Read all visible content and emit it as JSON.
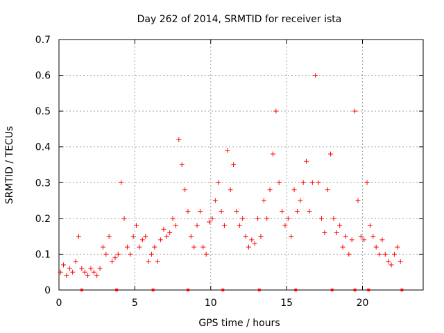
{
  "chart_data": {
    "type": "scatter",
    "title": "Day 262 of 2014, SRMTID for receiver ista",
    "xlabel": "GPS time / hours",
    "ylabel": "SRMTID / TECUs",
    "xlim": [
      0,
      24
    ],
    "ylim": [
      0,
      0.7
    ],
    "xticks": [
      {
        "value": 0,
        "label": "0"
      },
      {
        "value": 5,
        "label": "5"
      },
      {
        "value": 10,
        "label": "10"
      },
      {
        "value": 15,
        "label": "15"
      },
      {
        "value": 20,
        "label": "20"
      }
    ],
    "yticks": [
      {
        "value": 0,
        "label": "0"
      },
      {
        "value": 0.1,
        "label": "0.1"
      },
      {
        "value": 0.2,
        "label": "0.2"
      },
      {
        "value": 0.3,
        "label": "0.3"
      },
      {
        "value": 0.4,
        "label": "0.4"
      },
      {
        "value": 0.5,
        "label": "0.5"
      },
      {
        "value": 0.6,
        "label": "0.6"
      },
      {
        "value": 0.7,
        "label": "0.7"
      }
    ],
    "grid": true,
    "marker": "plus",
    "color": "#ff0000",
    "series": [
      {
        "name": "SRMTID",
        "points": [
          [
            0.1,
            0.05
          ],
          [
            0.3,
            0.07
          ],
          [
            0.5,
            0.04
          ],
          [
            0.7,
            0.06
          ],
          [
            0.9,
            0.05
          ],
          [
            1.1,
            0.08
          ],
          [
            1.3,
            0.15
          ],
          [
            1.5,
            0.06
          ],
          [
            1.7,
            0.05
          ],
          [
            1.9,
            0.04
          ],
          [
            2.1,
            0.06
          ],
          [
            2.3,
            0.05
          ],
          [
            2.5,
            0.04
          ],
          [
            2.7,
            0.06
          ],
          [
            2.9,
            0.12
          ],
          [
            3.1,
            0.1
          ],
          [
            3.3,
            0.15
          ],
          [
            3.5,
            0.08
          ],
          [
            3.7,
            0.09
          ],
          [
            3.9,
            0.1
          ],
          [
            4.1,
            0.3
          ],
          [
            4.3,
            0.2
          ],
          [
            4.5,
            0.12
          ],
          [
            4.7,
            0.1
          ],
          [
            4.9,
            0.15
          ],
          [
            5.1,
            0.18
          ],
          [
            5.3,
            0.12
          ],
          [
            5.5,
            0.14
          ],
          [
            5.7,
            0.15
          ],
          [
            5.9,
            0.08
          ],
          [
            6.1,
            0.1
          ],
          [
            6.3,
            0.12
          ],
          [
            6.5,
            0.08
          ],
          [
            6.7,
            0.14
          ],
          [
            6.9,
            0.17
          ],
          [
            7.1,
            0.15
          ],
          [
            7.3,
            0.16
          ],
          [
            7.5,
            0.2
          ],
          [
            7.7,
            0.18
          ],
          [
            7.9,
            0.42
          ],
          [
            8.1,
            0.35
          ],
          [
            8.3,
            0.28
          ],
          [
            8.5,
            0.22
          ],
          [
            8.7,
            0.15
          ],
          [
            8.9,
            0.12
          ],
          [
            9.1,
            0.18
          ],
          [
            9.3,
            0.22
          ],
          [
            9.5,
            0.12
          ],
          [
            9.7,
            0.1
          ],
          [
            9.9,
            0.19
          ],
          [
            10.1,
            0.2
          ],
          [
            10.3,
            0.25
          ],
          [
            10.5,
            0.3
          ],
          [
            10.7,
            0.22
          ],
          [
            10.9,
            0.18
          ],
          [
            11.1,
            0.39
          ],
          [
            11.3,
            0.28
          ],
          [
            11.5,
            0.35
          ],
          [
            11.7,
            0.22
          ],
          [
            11.9,
            0.18
          ],
          [
            12.1,
            0.2
          ],
          [
            12.3,
            0.15
          ],
          [
            12.5,
            0.12
          ],
          [
            12.7,
            0.14
          ],
          [
            12.9,
            0.13
          ],
          [
            13.1,
            0.2
          ],
          [
            13.3,
            0.15
          ],
          [
            13.5,
            0.25
          ],
          [
            13.7,
            0.2
          ],
          [
            13.9,
            0.28
          ],
          [
            14.1,
            0.38
          ],
          [
            14.3,
            0.5
          ],
          [
            14.5,
            0.3
          ],
          [
            14.7,
            0.22
          ],
          [
            14.9,
            0.18
          ],
          [
            15.1,
            0.2
          ],
          [
            15.3,
            0.15
          ],
          [
            15.5,
            0.28
          ],
          [
            15.7,
            0.22
          ],
          [
            15.9,
            0.25
          ],
          [
            16.1,
            0.3
          ],
          [
            16.3,
            0.36
          ],
          [
            16.5,
            0.22
          ],
          [
            16.7,
            0.3
          ],
          [
            16.9,
            0.6
          ],
          [
            17.1,
            0.3
          ],
          [
            17.3,
            0.2
          ],
          [
            17.5,
            0.16
          ],
          [
            17.7,
            0.28
          ],
          [
            17.9,
            0.38
          ],
          [
            18.1,
            0.2
          ],
          [
            18.3,
            0.16
          ],
          [
            18.5,
            0.18
          ],
          [
            18.7,
            0.12
          ],
          [
            18.9,
            0.15
          ],
          [
            19.1,
            0.1
          ],
          [
            19.3,
            0.14
          ],
          [
            19.5,
            0.5
          ],
          [
            19.7,
            0.25
          ],
          [
            19.9,
            0.15
          ],
          [
            20.1,
            0.14
          ],
          [
            20.3,
            0.3
          ],
          [
            20.5,
            0.18
          ],
          [
            20.7,
            0.15
          ],
          [
            20.9,
            0.12
          ],
          [
            21.1,
            0.1
          ],
          [
            21.3,
            0.14
          ],
          [
            21.5,
            0.1
          ],
          [
            21.7,
            0.08
          ],
          [
            21.9,
            0.07
          ],
          [
            22.1,
            0.1
          ],
          [
            22.3,
            0.12
          ],
          [
            22.5,
            0.08
          ]
        ]
      }
    ],
    "bottom_markers_x": [
      1.5,
      3.8,
      6.2,
      8.5,
      10.8,
      13.2,
      15.6,
      18.0,
      19.5,
      20.4,
      22.6
    ]
  }
}
